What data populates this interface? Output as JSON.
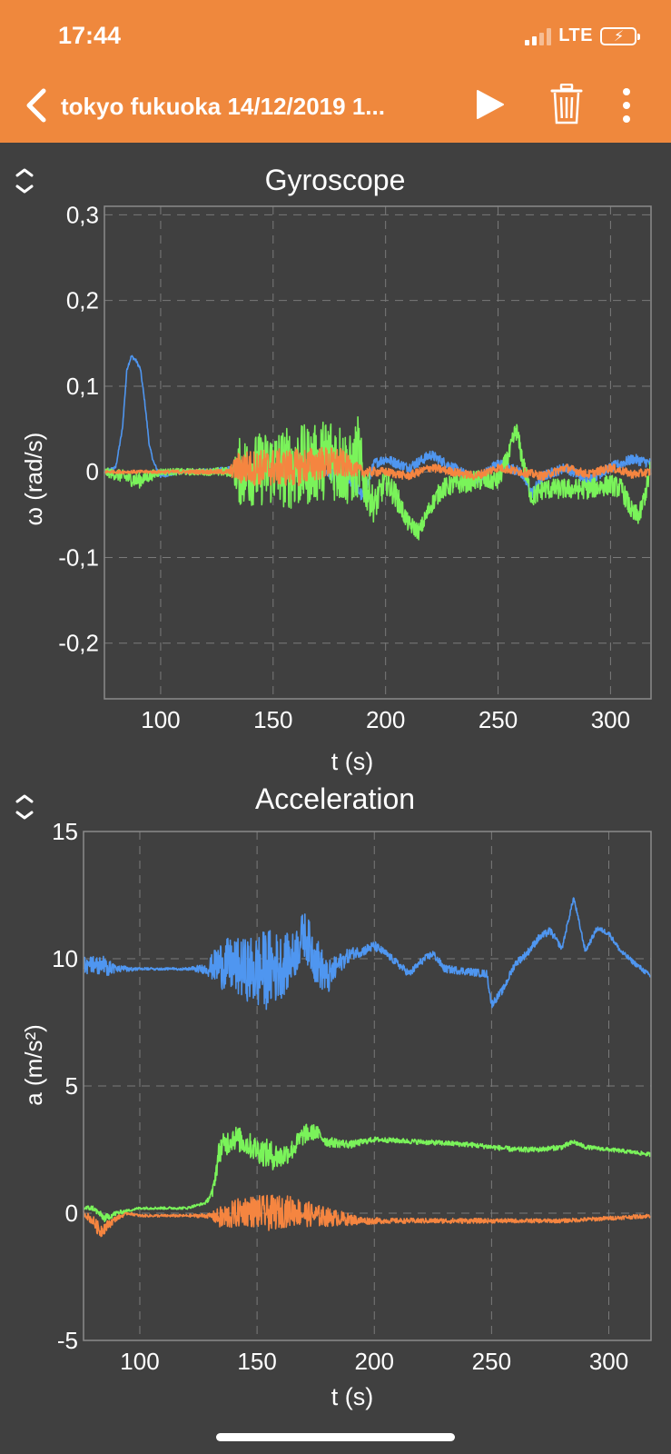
{
  "status": {
    "time": "17:44",
    "network": "LTE"
  },
  "header": {
    "title": "tokyo fukuoka 14/12/2019 1..."
  },
  "icons": {
    "back": "chevron-left-icon",
    "play": "play-icon",
    "trash": "trash-icon",
    "more": "more-vertical-icon",
    "collapse": "expand-collapse-icon"
  },
  "colors": {
    "header_bg": "#ef883d",
    "background": "#404040",
    "series_x": "#4f96f0",
    "series_y": "#7af35a",
    "series_z": "#f58540"
  },
  "charts": {
    "gyro": {
      "title": "Gyroscope",
      "xlabel": "t (s)",
      "ylabel": "ω (rad/s)"
    },
    "accel": {
      "title": "Acceleration",
      "xlabel": "t (s)",
      "ylabel": "a (m/s²)"
    }
  },
  "chart_data": [
    {
      "type": "line",
      "title": "Gyroscope",
      "xlabel": "t (s)",
      "ylabel": "ω (rad/s)",
      "xlim": [
        75,
        318
      ],
      "ylim": [
        -0.265,
        0.31
      ],
      "xticks": [
        100,
        150,
        200,
        250,
        300
      ],
      "xtick_labels": [
        "100",
        "150",
        "200",
        "250",
        "300"
      ],
      "yticks": [
        -0.2,
        -0.1,
        0,
        0.1,
        0.2,
        0.3
      ],
      "ytick_labels": [
        "-0,2",
        "-0,1",
        "0",
        "0,1",
        "0,2",
        "0,3"
      ],
      "grid": true,
      "series": [
        {
          "color": "#4f96f0",
          "x": [
            75,
            80,
            83,
            85,
            87,
            89,
            91,
            93,
            95,
            97,
            100,
            110,
            130,
            150,
            170,
            180,
            185,
            190,
            195,
            200,
            205,
            210,
            215,
            220,
            230,
            240,
            250,
            255,
            260,
            265,
            270,
            280,
            290,
            300,
            310,
            318
          ],
          "y": [
            0,
            0.005,
            0.05,
            0.12,
            0.135,
            0.13,
            0.12,
            0.08,
            0.03,
            0.01,
            -0.005,
            0,
            0.002,
            0,
            0.002,
            -0.005,
            -0.01,
            -0.03,
            0.01,
            0.015,
            0.01,
            0.005,
            0.012,
            0.02,
            0.005,
            -0.01,
            0.01,
            0.005,
            0.0,
            -0.025,
            -0.005,
            0.005,
            -0.01,
            0.005,
            0.015,
            0.01
          ],
          "noise": [
            0.002,
            0.002,
            0.002,
            0.002,
            0.002,
            0.002,
            0.002,
            0.002,
            0.002,
            0.002,
            0.002,
            0.002,
            0.004,
            0.008,
            0.008,
            0.008,
            0.008,
            0.008,
            0.006,
            0.006,
            0.006,
            0.006,
            0.006,
            0.006,
            0.006,
            0.006,
            0.006,
            0.006,
            0.006,
            0.006,
            0.006,
            0.006,
            0.006,
            0.006,
            0.006,
            0.006
          ]
        },
        {
          "color": "#7af35a",
          "x": [
            75,
            90,
            100,
            120,
            132,
            135,
            150,
            160,
            170,
            175,
            180,
            185,
            188,
            190,
            195,
            200,
            205,
            210,
            215,
            220,
            225,
            230,
            240,
            250,
            255,
            258,
            262,
            265,
            270,
            280,
            290,
            300,
            305,
            310,
            313,
            316,
            318
          ],
          "y": [
            0,
            -0.01,
            0,
            0,
            0,
            0,
            0.005,
            0.005,
            0.01,
            0.02,
            0.01,
            0.0,
            0.02,
            -0.01,
            -0.04,
            -0.01,
            -0.03,
            -0.06,
            -0.07,
            -0.04,
            -0.02,
            -0.015,
            -0.01,
            -0.01,
            0.02,
            0.05,
            0.0,
            -0.03,
            -0.02,
            -0.02,
            -0.02,
            -0.015,
            -0.02,
            -0.05,
            -0.05,
            -0.02,
            0.005
          ],
          "noise": [
            0.005,
            0.01,
            0.004,
            0.004,
            0.006,
            0.04,
            0.045,
            0.05,
            0.045,
            0.05,
            0.05,
            0.04,
            0.05,
            0.03,
            0.02,
            0.015,
            0.015,
            0.01,
            0.01,
            0.01,
            0.012,
            0.012,
            0.012,
            0.012,
            0.012,
            0.012,
            0.012,
            0.012,
            0.012,
            0.012,
            0.012,
            0.012,
            0.012,
            0.012,
            0.012,
            0.012,
            0.012
          ]
        },
        {
          "color": "#f58540",
          "x": [
            75,
            100,
            130,
            135,
            150,
            160,
            170,
            180,
            185,
            190,
            200,
            210,
            220,
            230,
            240,
            250,
            260,
            270,
            280,
            290,
            300,
            310,
            318
          ],
          "y": [
            0,
            0,
            0,
            0.005,
            0.005,
            0.005,
            0.01,
            0.01,
            0.005,
            0.0,
            0.0,
            -0.005,
            0.005,
            0.0,
            -0.005,
            0.005,
            0.0,
            -0.005,
            0.005,
            -0.003,
            0.005,
            -0.003,
            0.0
          ],
          "noise": [
            0.002,
            0.002,
            0.003,
            0.02,
            0.022,
            0.022,
            0.02,
            0.018,
            0.01,
            0.006,
            0.005,
            0.005,
            0.005,
            0.005,
            0.005,
            0.005,
            0.005,
            0.005,
            0.005,
            0.005,
            0.005,
            0.005,
            0.005
          ]
        }
      ]
    },
    {
      "type": "line",
      "title": "Acceleration",
      "xlabel": "t (s)",
      "ylabel": "a (m/s²)",
      "xlim": [
        76,
        318
      ],
      "ylim": [
        -5,
        15
      ],
      "xticks": [
        100,
        150,
        200,
        250,
        300
      ],
      "xtick_labels": [
        "100",
        "150",
        "200",
        "250",
        "300"
      ],
      "yticks": [
        -5,
        0,
        5,
        10,
        15
      ],
      "ytick_labels": [
        "-5",
        "0",
        "5",
        "10",
        "15"
      ],
      "grid": true,
      "series": [
        {
          "color": "#4f96f0",
          "x": [
            76,
            80,
            85,
            90,
            100,
            120,
            128,
            135,
            145,
            150,
            155,
            160,
            165,
            170,
            175,
            180,
            185,
            190,
            195,
            200,
            205,
            210,
            215,
            220,
            225,
            230,
            240,
            248,
            250,
            255,
            260,
            265,
            270,
            275,
            280,
            285,
            290,
            295,
            300,
            305,
            310,
            318
          ],
          "y": [
            9.8,
            9.8,
            9.7,
            9.6,
            9.6,
            9.6,
            9.6,
            9.8,
            9.6,
            9.5,
            9.6,
            9.7,
            10.0,
            11.0,
            10.0,
            9.2,
            9.8,
            10.2,
            10.3,
            10.5,
            10.2,
            9.8,
            9.4,
            9.9,
            10.2,
            9.6,
            9.5,
            9.4,
            8.2,
            8.8,
            9.8,
            10.2,
            10.8,
            11.1,
            10.4,
            12.4,
            10.3,
            11.2,
            11.0,
            10.3,
            9.9,
            9.3
          ],
          "noise": [
            0.4,
            0.4,
            0.4,
            0.15,
            0.05,
            0.05,
            0.2,
            1.0,
            1.2,
            1.5,
            1.6,
            1.3,
            1.0,
            0.9,
            1.0,
            0.7,
            0.4,
            0.25,
            0.2,
            0.2,
            0.15,
            0.15,
            0.15,
            0.15,
            0.15,
            0.15,
            0.15,
            0.15,
            0.15,
            0.15,
            0.15,
            0.15,
            0.15,
            0.15,
            0.1,
            0.1,
            0.1,
            0.1,
            0.1,
            0.1,
            0.1,
            0.1
          ]
        },
        {
          "color": "#7af35a",
          "x": [
            76,
            80,
            85,
            90,
            95,
            100,
            120,
            128,
            131,
            134,
            140,
            150,
            155,
            160,
            165,
            170,
            175,
            180,
            190,
            200,
            220,
            240,
            250,
            260,
            270,
            280,
            285,
            290,
            300,
            310,
            318
          ],
          "y": [
            0.2,
            0.2,
            -0.2,
            0.0,
            0.1,
            0.2,
            0.2,
            0.4,
            0.8,
            2.5,
            3.0,
            2.5,
            2.3,
            2.2,
            2.5,
            3.1,
            3.2,
            2.8,
            2.7,
            2.9,
            2.8,
            2.7,
            2.6,
            2.5,
            2.5,
            2.6,
            2.8,
            2.6,
            2.5,
            2.4,
            2.3
          ],
          "noise": [
            0.1,
            0.1,
            0.15,
            0.1,
            0.05,
            0.05,
            0.05,
            0.05,
            0.2,
            0.5,
            0.5,
            0.5,
            0.6,
            0.5,
            0.4,
            0.4,
            0.3,
            0.2,
            0.15,
            0.1,
            0.1,
            0.1,
            0.1,
            0.1,
            0.1,
            0.1,
            0.1,
            0.08,
            0.08,
            0.08,
            0.08
          ]
        },
        {
          "color": "#f58540",
          "x": [
            76,
            80,
            83,
            86,
            90,
            95,
            100,
            120,
            130,
            135,
            145,
            155,
            165,
            175,
            185,
            195,
            205,
            220,
            240,
            260,
            280,
            300,
            318
          ],
          "y": [
            0.0,
            -0.3,
            -0.7,
            -0.5,
            -0.2,
            0.0,
            -0.1,
            -0.1,
            -0.1,
            -0.2,
            0.1,
            0.0,
            0.1,
            -0.1,
            -0.2,
            -0.3,
            -0.3,
            -0.3,
            -0.3,
            -0.3,
            -0.3,
            -0.2,
            -0.1
          ],
          "noise": [
            0.1,
            0.2,
            0.3,
            0.2,
            0.1,
            0.05,
            0.05,
            0.05,
            0.1,
            0.5,
            0.6,
            0.7,
            0.6,
            0.45,
            0.3,
            0.15,
            0.1,
            0.1,
            0.1,
            0.08,
            0.08,
            0.08,
            0.08
          ]
        }
      ]
    }
  ]
}
